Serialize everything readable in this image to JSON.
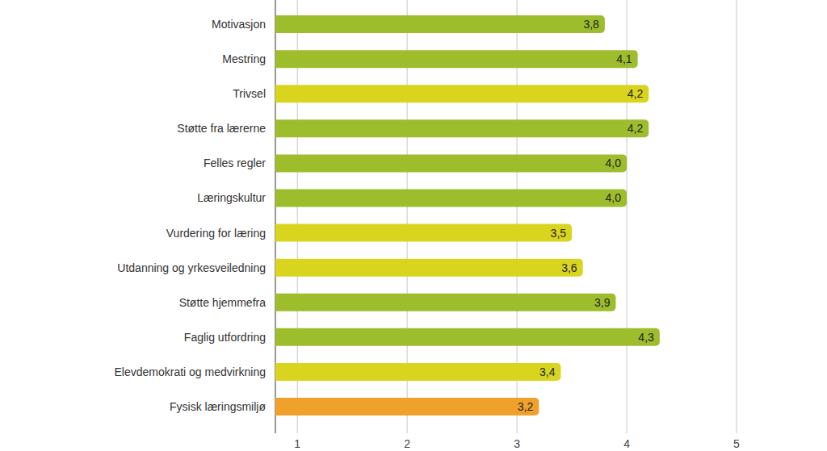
{
  "chart_data": {
    "type": "bar",
    "orientation": "horizontal",
    "categories": [
      "Motivasjon",
      "Mestring",
      "Trivsel",
      "Støtte fra lærerne",
      "Felles regler",
      "Læringskultur",
      "Vurdering for læring",
      "Utdanning og yrkesveiledning",
      "Støtte hjemmefra",
      "Faglig utfordring",
      "Elevdemokrati og medvirkning",
      "Fysisk læringsmiljø"
    ],
    "values": [
      3.8,
      4.1,
      4.2,
      4.2,
      4.0,
      4.0,
      3.5,
      3.6,
      3.9,
      4.3,
      3.4,
      3.2
    ],
    "value_labels": [
      "3,8",
      "4,1",
      "4,2",
      "4,2",
      "4,0",
      "4,0",
      "3,5",
      "3,6",
      "3,9",
      "4,3",
      "3,4",
      "3,2"
    ],
    "colors": [
      "#9dbd2d",
      "#9dbd2d",
      "#d9d51f",
      "#9dbd2d",
      "#9dbd2d",
      "#9dbd2d",
      "#d9d51f",
      "#d9d51f",
      "#9dbd2d",
      "#9dbd2d",
      "#d9d51f",
      "#f0a12b"
    ],
    "xlim": [
      0.8,
      5
    ],
    "xticks": [
      1,
      2,
      3,
      4,
      5
    ],
    "grid": true,
    "data_labels": true
  }
}
